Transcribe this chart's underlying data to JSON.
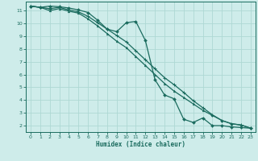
{
  "xlabel": "Humidex (Indice chaleur)",
  "bg_color": "#ceecea",
  "grid_color": "#aed8d4",
  "line_color": "#1a6b5e",
  "xlim": [
    -0.5,
    23.5
  ],
  "ylim": [
    1.5,
    11.7
  ],
  "xticks": [
    0,
    1,
    2,
    3,
    4,
    5,
    6,
    7,
    8,
    9,
    10,
    11,
    12,
    13,
    14,
    15,
    16,
    17,
    18,
    19,
    20,
    21,
    22,
    23
  ],
  "yticks": [
    2,
    3,
    4,
    5,
    6,
    7,
    8,
    9,
    10,
    11
  ],
  "line1_x": [
    0,
    1,
    2,
    3,
    4,
    5,
    6,
    7,
    8,
    9,
    10,
    11,
    12,
    13,
    14,
    15,
    16,
    17,
    18,
    19,
    20,
    21,
    22,
    23
  ],
  "line1_y": [
    11.35,
    11.25,
    11.35,
    11.3,
    11.2,
    11.05,
    10.85,
    10.25,
    9.55,
    9.35,
    10.05,
    10.15,
    8.65,
    5.6,
    4.4,
    4.1,
    2.5,
    2.25,
    2.6,
    2.0,
    2.0,
    1.9,
    1.85,
    1.8
  ],
  "line2_x": [
    0,
    1,
    2,
    3,
    4,
    5,
    6,
    7,
    8,
    9,
    10,
    11,
    12,
    13,
    14,
    15,
    16,
    17,
    18,
    19,
    20,
    21,
    22,
    23
  ],
  "line2_y": [
    11.35,
    11.25,
    11.15,
    11.25,
    11.05,
    10.9,
    10.55,
    10.05,
    9.55,
    9.05,
    8.55,
    7.85,
    7.15,
    6.45,
    5.75,
    5.2,
    4.6,
    3.95,
    3.4,
    2.85,
    2.4,
    2.15,
    2.05,
    1.8
  ],
  "line3_x": [
    0,
    1,
    2,
    3,
    4,
    5,
    6,
    7,
    8,
    9,
    10,
    11,
    12,
    13,
    14,
    15,
    16,
    17,
    18,
    19,
    20,
    21,
    22,
    23
  ],
  "line3_y": [
    11.35,
    11.25,
    11.0,
    11.15,
    10.95,
    10.8,
    10.35,
    9.8,
    9.2,
    8.6,
    8.1,
    7.4,
    6.7,
    6.0,
    5.3,
    4.7,
    4.2,
    3.7,
    3.2,
    2.8,
    2.4,
    2.15,
    2.05,
    1.8
  ]
}
